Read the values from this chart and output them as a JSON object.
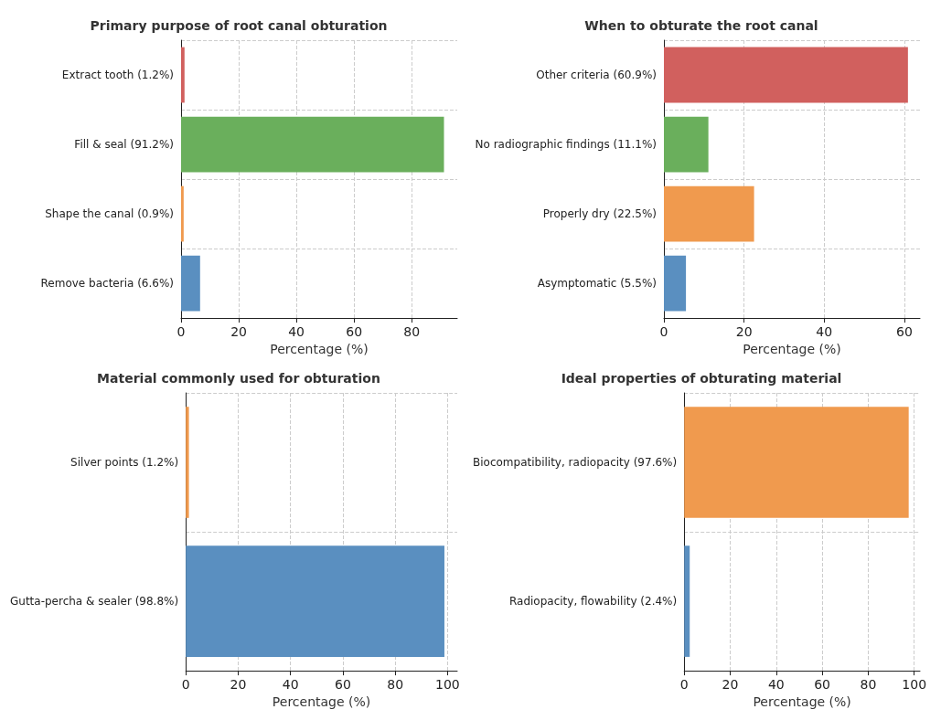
{
  "chart_data": [
    {
      "type": "bar",
      "orientation": "horizontal",
      "title": "Primary purpose of root canal obturation",
      "xlabel": "Percentage (%)",
      "categories": [
        "Extract tooth (1.2%)",
        "Fill & seal (91.2%)",
        "Shape the canal (0.9%)",
        "Remove bacteria (6.6%)"
      ],
      "values": [
        1.2,
        91.2,
        0.9,
        6.6
      ],
      "colors": [
        "#d1605e",
        "#6aaf5c",
        "#f09a4e",
        "#5a8fc0"
      ],
      "xlim": [
        0,
        95.8
      ],
      "xticks": [
        0,
        20,
        40,
        60,
        80
      ],
      "grid": true
    },
    {
      "type": "bar",
      "orientation": "horizontal",
      "title": "When to obturate the root canal",
      "xlabel": "Percentage (%)",
      "categories": [
        "Other criteria (60.9%)",
        "No radiographic findings (11.1%)",
        "Properly dry (22.5%)",
        "Asymptomatic (5.5%)"
      ],
      "values": [
        60.9,
        11.1,
        22.5,
        5.5
      ],
      "colors": [
        "#d1605e",
        "#6aaf5c",
        "#f09a4e",
        "#5a8fc0"
      ],
      "xlim": [
        0,
        63.9
      ],
      "xticks": [
        0,
        20,
        40,
        60
      ],
      "grid": true
    },
    {
      "type": "bar",
      "orientation": "horizontal",
      "title": "Material commonly used for obturation",
      "xlabel": "Percentage (%)",
      "categories": [
        "Silver points (1.2%)",
        "Gutta-percha & sealer (98.8%)"
      ],
      "values": [
        1.2,
        98.8
      ],
      "colors": [
        "#f09a4e",
        "#5a8fc0"
      ],
      "xlim": [
        0,
        103.7
      ],
      "xticks": [
        0,
        20,
        40,
        60,
        80,
        100
      ],
      "grid": true
    },
    {
      "type": "bar",
      "orientation": "horizontal",
      "title": "Ideal properties of obturating material",
      "xlabel": "Percentage (%)",
      "categories": [
        "Biocompatibility, radiopacity (97.6%)",
        "Radiopacity, flowability (2.4%)"
      ],
      "values": [
        97.6,
        2.4
      ],
      "colors": [
        "#f09a4e",
        "#5a8fc0"
      ],
      "xlim": [
        0,
        102.5
      ],
      "xticks": [
        0,
        20,
        40,
        60,
        80,
        100
      ],
      "grid": true
    }
  ]
}
